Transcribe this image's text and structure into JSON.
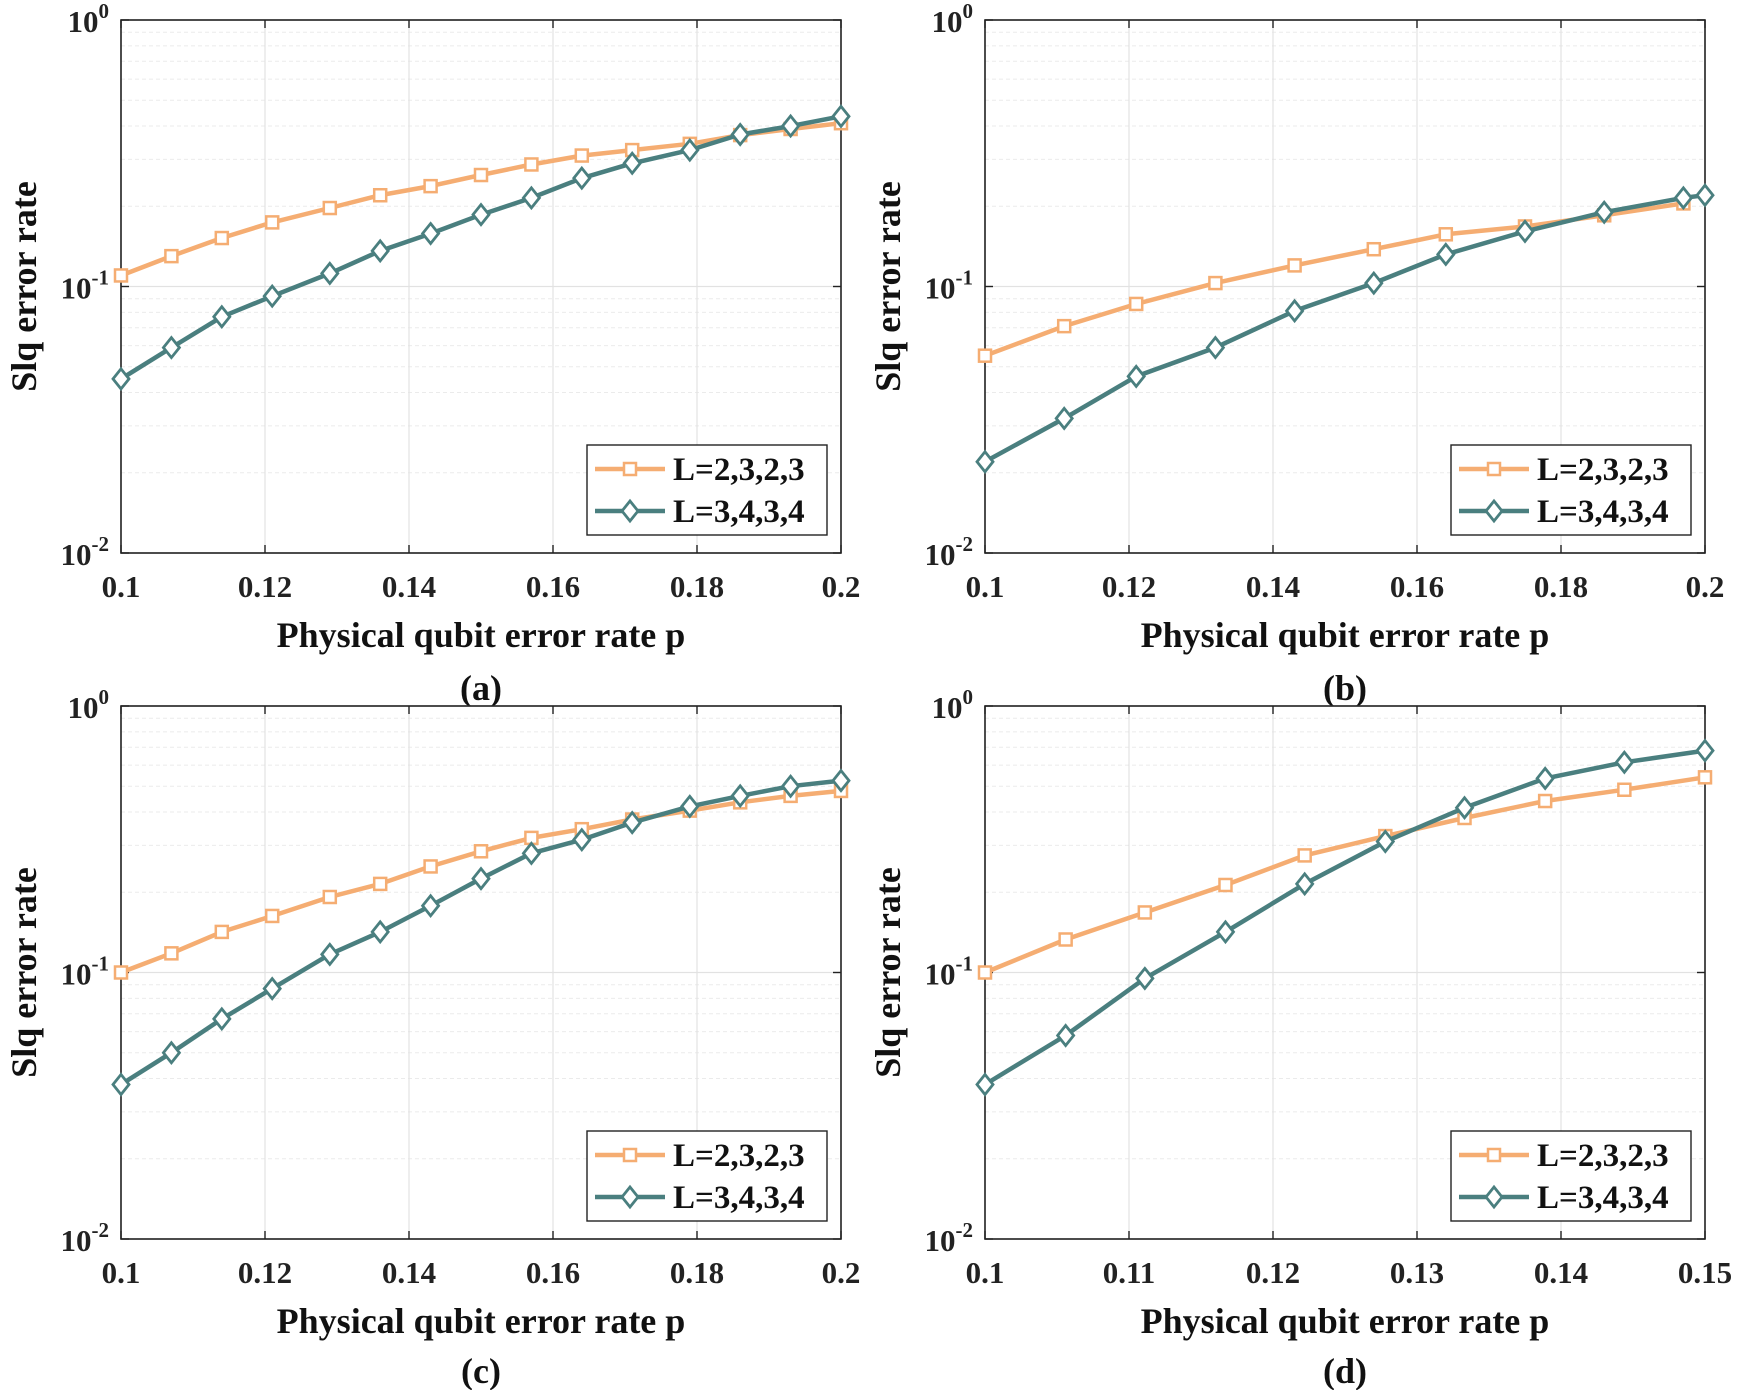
{
  "figure": {
    "colors": {
      "series1": "#F5AD72",
      "series2": "#4A7F7F",
      "grid": "#e2e2e2",
      "axis": "#222222"
    }
  },
  "chart_data": [
    {
      "type": "line",
      "panel": "(a)",
      "caption": "(a)",
      "xlabel": "Physical qubit error rate p",
      "ylabel": "Slq error rate",
      "yscale": "log",
      "xlim": [
        0.1,
        0.2
      ],
      "ylim": [
        0.01,
        1
      ],
      "xticks": [
        0.1,
        0.12,
        0.14,
        0.16,
        0.18,
        0.2
      ],
      "xtick_labels": [
        "0.1",
        "0.12",
        "0.14",
        "0.16",
        "0.18",
        "0.2"
      ],
      "yticks": [
        0.01,
        0.1,
        1
      ],
      "ytick_labels": [
        {
          "base": "10",
          "exp": "-2"
        },
        {
          "base": "10",
          "exp": "-1"
        },
        {
          "base": "10",
          "exp": "0"
        }
      ],
      "legend_position": "bottom-right",
      "series": [
        {
          "name": "L=2,3,2,3",
          "marker": "square",
          "x": [
            0.1,
            0.107,
            0.114,
            0.121,
            0.129,
            0.136,
            0.143,
            0.15,
            0.157,
            0.164,
            0.171,
            0.179,
            0.186,
            0.193,
            0.2
          ],
          "y": [
            0.11,
            0.13,
            0.152,
            0.174,
            0.197,
            0.22,
            0.238,
            0.262,
            0.287,
            0.31,
            0.325,
            0.343,
            0.37,
            0.39,
            0.41
          ]
        },
        {
          "name": "L=3,4,3,4",
          "marker": "diamond",
          "x": [
            0.1,
            0.107,
            0.114,
            0.121,
            0.129,
            0.136,
            0.143,
            0.15,
            0.157,
            0.164,
            0.171,
            0.179,
            0.186,
            0.193,
            0.2
          ],
          "y": [
            0.045,
            0.059,
            0.077,
            0.092,
            0.112,
            0.136,
            0.158,
            0.186,
            0.215,
            0.255,
            0.29,
            0.325,
            0.372,
            0.4,
            0.435
          ]
        }
      ]
    },
    {
      "type": "line",
      "panel": "(b)",
      "caption": "(b)",
      "xlabel": "Physical qubit error rate p",
      "ylabel": "Slq error rate",
      "yscale": "log",
      "xlim": [
        0.1,
        0.2
      ],
      "ylim": [
        0.01,
        1
      ],
      "xticks": [
        0.1,
        0.12,
        0.14,
        0.16,
        0.18,
        0.2
      ],
      "xtick_labels": [
        "0.1",
        "0.12",
        "0.14",
        "0.16",
        "0.18",
        "0.2"
      ],
      "yticks": [
        0.01,
        0.1,
        1
      ],
      "ytick_labels": [
        {
          "base": "10",
          "exp": "-2"
        },
        {
          "base": "10",
          "exp": "-1"
        },
        {
          "base": "10",
          "exp": "0"
        }
      ],
      "legend_position": "bottom-right",
      "series": [
        {
          "name": "L=2,3,2,3",
          "marker": "square",
          "x": [
            0.1,
            0.111,
            0.121,
            0.132,
            0.143,
            0.154,
            0.164,
            0.175,
            0.186,
            0.197
          ],
          "y": [
            0.055,
            0.071,
            0.086,
            0.103,
            0.12,
            0.138,
            0.157,
            0.168,
            0.185,
            0.205
          ]
        },
        {
          "name": "L=3,4,3,4",
          "marker": "diamond",
          "x": [
            0.1,
            0.111,
            0.121,
            0.132,
            0.143,
            0.154,
            0.164,
            0.175,
            0.186,
            0.197,
            0.2
          ],
          "y": [
            0.022,
            0.032,
            0.046,
            0.059,
            0.081,
            0.103,
            0.132,
            0.161,
            0.19,
            0.215,
            0.22
          ]
        }
      ]
    },
    {
      "type": "line",
      "panel": "(c)",
      "caption": "(c)",
      "xlabel": "Physical qubit error rate p",
      "ylabel": "Slq error rate",
      "yscale": "log",
      "xlim": [
        0.1,
        0.2
      ],
      "ylim": [
        0.01,
        1
      ],
      "xticks": [
        0.1,
        0.12,
        0.14,
        0.16,
        0.18,
        0.2
      ],
      "xtick_labels": [
        "0.1",
        "0.12",
        "0.14",
        "0.16",
        "0.18",
        "0.2"
      ],
      "yticks": [
        0.01,
        0.1,
        1
      ],
      "ytick_labels": [
        {
          "base": "10",
          "exp": "-2"
        },
        {
          "base": "10",
          "exp": "-1"
        },
        {
          "base": "10",
          "exp": "0"
        }
      ],
      "legend_position": "bottom-right",
      "series": [
        {
          "name": "L=2,3,2,3",
          "marker": "square",
          "x": [
            0.1,
            0.107,
            0.114,
            0.121,
            0.129,
            0.136,
            0.143,
            0.15,
            0.157,
            0.164,
            0.171,
            0.179,
            0.186,
            0.193,
            0.2
          ],
          "y": [
            0.1,
            0.118,
            0.142,
            0.163,
            0.192,
            0.215,
            0.25,
            0.285,
            0.32,
            0.345,
            0.375,
            0.405,
            0.435,
            0.46,
            0.48
          ]
        },
        {
          "name": "L=3,4,3,4",
          "marker": "diamond",
          "x": [
            0.1,
            0.107,
            0.114,
            0.121,
            0.129,
            0.136,
            0.143,
            0.15,
            0.157,
            0.164,
            0.171,
            0.179,
            0.186,
            0.193,
            0.2
          ],
          "y": [
            0.038,
            0.05,
            0.067,
            0.087,
            0.117,
            0.142,
            0.178,
            0.225,
            0.28,
            0.315,
            0.365,
            0.42,
            0.46,
            0.5,
            0.525
          ]
        }
      ]
    },
    {
      "type": "line",
      "panel": "(d)",
      "caption": "(d)",
      "xlabel": "Physical qubit error rate p",
      "ylabel": "Slq error rate",
      "yscale": "log",
      "xlim": [
        0.1,
        0.15
      ],
      "ylim": [
        0.01,
        1
      ],
      "xticks": [
        0.1,
        0.11,
        0.12,
        0.13,
        0.14,
        0.15
      ],
      "xtick_labels": [
        "0.1",
        "0.11",
        "0.12",
        "0.13",
        "0.14",
        "0.15"
      ],
      "yticks": [
        0.01,
        0.1,
        1
      ],
      "ytick_labels": [
        {
          "base": "10",
          "exp": "-2"
        },
        {
          "base": "10",
          "exp": "-1"
        },
        {
          "base": "10",
          "exp": "0"
        }
      ],
      "legend_position": "bottom-right",
      "series": [
        {
          "name": "L=2,3,2,3",
          "marker": "square",
          "x": [
            0.1,
            0.1056,
            0.1111,
            0.1167,
            0.1222,
            0.1278,
            0.1333,
            0.1389,
            0.1444,
            0.15
          ],
          "y": [
            0.1,
            0.133,
            0.168,
            0.213,
            0.275,
            0.325,
            0.38,
            0.44,
            0.485,
            0.54
          ]
        },
        {
          "name": "L=3,4,3,4",
          "marker": "diamond",
          "x": [
            0.1,
            0.1056,
            0.1111,
            0.1167,
            0.1222,
            0.1278,
            0.1333,
            0.1389,
            0.1444,
            0.15
          ],
          "y": [
            0.038,
            0.058,
            0.095,
            0.142,
            0.215,
            0.31,
            0.415,
            0.535,
            0.615,
            0.68
          ]
        }
      ]
    }
  ]
}
